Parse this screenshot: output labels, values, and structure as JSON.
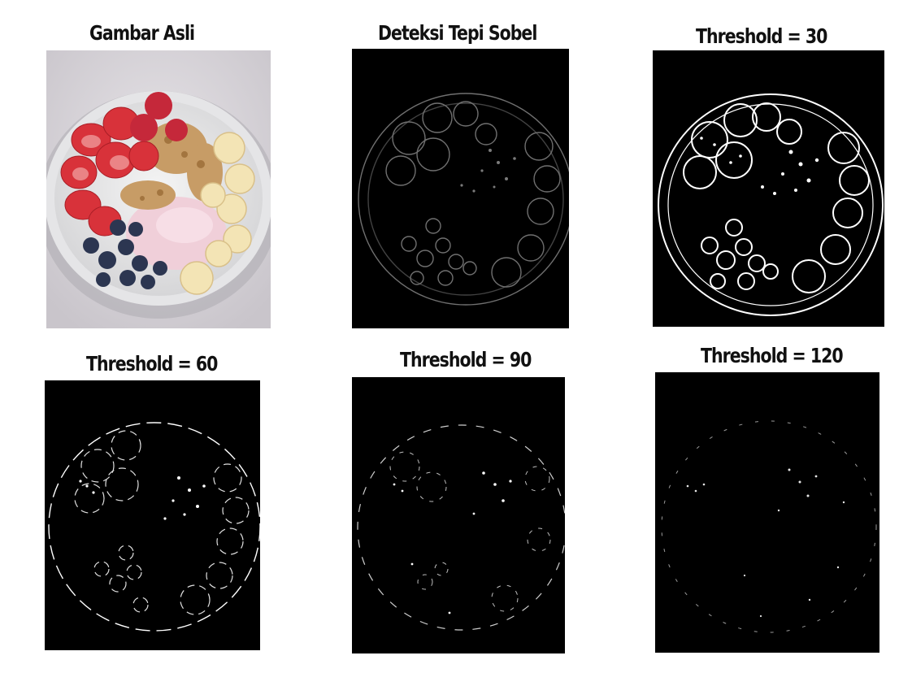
{
  "captions": {
    "original": "Gambar Asli",
    "sobel": "Deteksi Tepi Sobel",
    "t30": "Threshold = 30",
    "t60": "Threshold = 60",
    "t90": "Threshold = 90",
    "t120": "Threshold = 120"
  },
  "images": {
    "original": "food-bowl-photo",
    "sobel": "sobel-edge-map",
    "t30": "binary-edge-map-30",
    "t60": "binary-edge-map-60",
    "t90": "binary-edge-map-90",
    "t120": "binary-edge-map-120"
  },
  "colors": {
    "edge_background": "#000000",
    "edge_line": "#ffffff",
    "strawberry": "#d9333b",
    "banana": "#f2e3b3",
    "blueberry": "#2d3852",
    "yogurt": "#f2d3dd",
    "granola": "#c69a63",
    "bowl": "#ededed"
  }
}
